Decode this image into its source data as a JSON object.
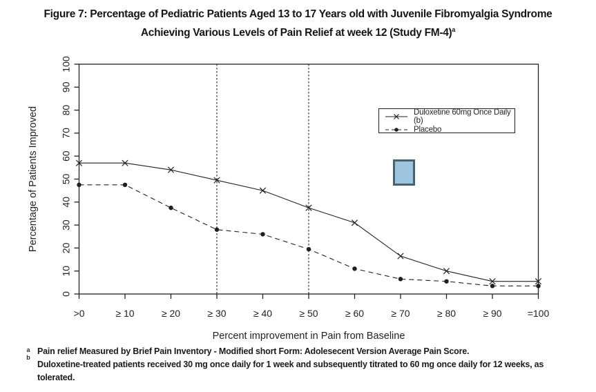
{
  "title": {
    "line1": "Figure 7: Percentage of Pediatric Patients Aged 13 to 17 Years old with Juvenile Fibromyalgia Syndrome",
    "line2": "Achieving Various Levels of Pain Relief at week 12 (Study FM-4)",
    "line2_superscript": "a"
  },
  "chart_data": {
    "type": "line",
    "title": "",
    "xlabel": "Percent improvement in Pain from Baseline",
    "ylabel": "Percentage of Patients Improved",
    "ylim": [
      0,
      100
    ],
    "y_ticks": [
      0,
      10,
      20,
      30,
      40,
      50,
      60,
      70,
      80,
      90,
      100
    ],
    "categories": [
      ">0",
      "≥ 10",
      "≥ 20",
      "≥ 30",
      "≥ 40",
      "≥ 50",
      "≥ 60",
      "≥ 70",
      "≥ 80",
      "≥ 90",
      "=100"
    ],
    "reference_categories": [
      "≥ 30",
      "≥ 50"
    ],
    "grid": "off",
    "legend_position": "upper-right",
    "ink_color": "#231f20",
    "series": [
      {
        "name": "Duloxetine 60mg Once Daily (b)",
        "marker": "x",
        "line_style": "solid",
        "values": [
          57,
          57,
          54,
          49.5,
          45,
          37.5,
          31,
          16.5,
          10,
          5.5,
          5.5
        ]
      },
      {
        "name": "Placebo",
        "marker": "dot",
        "line_style": "dashed",
        "values": [
          47.5,
          47.5,
          37.5,
          28,
          26,
          19.5,
          11,
          6.5,
          5.5,
          3.5,
          3.5
        ]
      }
    ]
  },
  "annotation_square": {
    "fill": "#9dc4de",
    "border": "#46616f"
  },
  "footnotes": [
    {
      "marker": "a",
      "text": "Pain relief Measured by Brief Pain Inventory - Modified short Form: Adolesecent Version Average Pain Score."
    },
    {
      "marker": "b",
      "text": "Duloxetine-treated patients received 30 mg once daily for 1 week and subsequently titrated to 60 mg once daily for 12 weeks, as tolerated."
    }
  ]
}
